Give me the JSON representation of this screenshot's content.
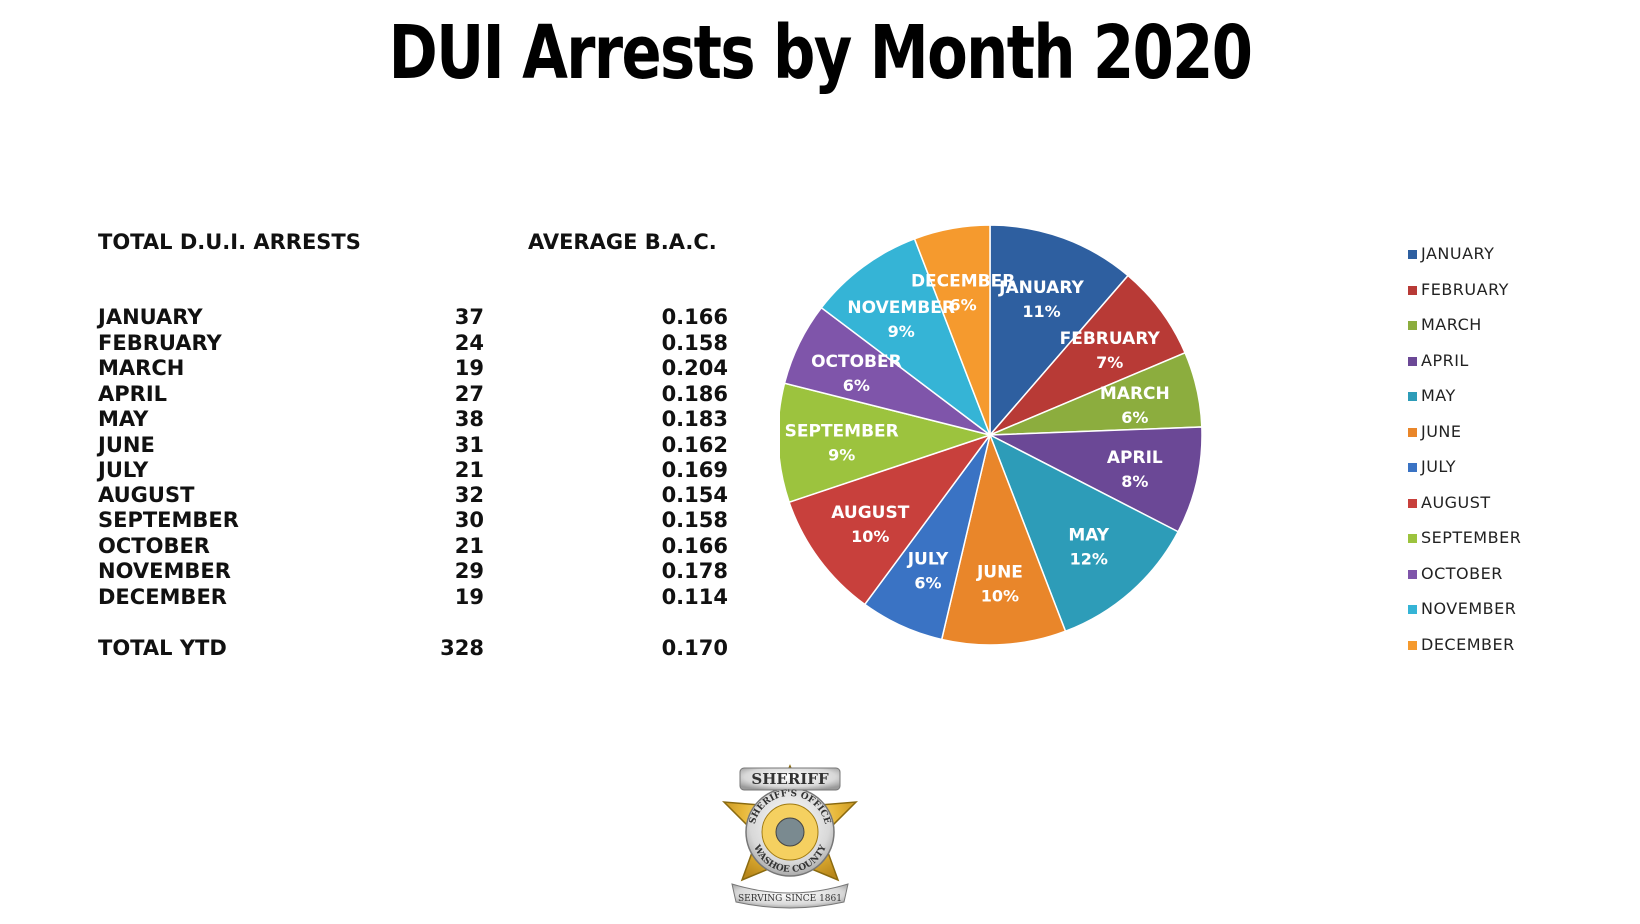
{
  "title": "DUI Arrests by Month 2020",
  "table": {
    "header_left": "TOTAL D.U.I. ARRESTS",
    "header_right": "AVERAGE B.A.C.",
    "rows": [
      {
        "month": "JANUARY",
        "count": "37",
        "bac": "0.166"
      },
      {
        "month": "FEBRUARY",
        "count": "24",
        "bac": "0.158"
      },
      {
        "month": "MARCH",
        "count": "19",
        "bac": "0.204"
      },
      {
        "month": "APRIL",
        "count": "27",
        "bac": "0.186"
      },
      {
        "month": "MAY",
        "count": "38",
        "bac": "0.183"
      },
      {
        "month": "JUNE",
        "count": "31",
        "bac": "0.162"
      },
      {
        "month": "JULY",
        "count": "21",
        "bac": "0.169"
      },
      {
        "month": "AUGUST",
        "count": "32",
        "bac": "0.154"
      },
      {
        "month": "SEPTEMBER",
        "count": "30",
        "bac": "0.158"
      },
      {
        "month": "OCTOBER",
        "count": "21",
        "bac": "0.166"
      },
      {
        "month": "NOVEMBER",
        "count": "29",
        "bac": "0.178"
      },
      {
        "month": "DECEMBER",
        "count": "19",
        "bac": "0.114"
      }
    ],
    "total": {
      "label": "TOTAL YTD",
      "count": "328",
      "bac": "0.170"
    }
  },
  "chart_data": {
    "type": "pie",
    "categories": [
      "JANUARY",
      "FEBRUARY",
      "MARCH",
      "APRIL",
      "MAY",
      "JUNE",
      "JULY",
      "AUGUST",
      "SEPTEMBER",
      "OCTOBER",
      "NOVEMBER",
      "DECEMBER"
    ],
    "values": [
      37,
      24,
      19,
      27,
      38,
      31,
      21,
      32,
      30,
      21,
      29,
      19
    ],
    "labels": [
      "11%",
      "7%",
      "6%",
      "8%",
      "12%",
      "10%",
      "6%",
      "10%",
      "9%",
      "6%",
      "9%",
      "6%"
    ],
    "colors": [
      "#2e5fa0",
      "#b83a36",
      "#8cad3e",
      "#6b4896",
      "#2d9cb8",
      "#e9862a",
      "#3a73c4",
      "#c8403c",
      "#9cc33e",
      "#7f55aa",
      "#35b4d6",
      "#f59a2e"
    ],
    "legend_position": "right"
  },
  "badge": {
    "top_text": "SHERIFF",
    "ring_top": "SHERIFF'S OFFICE",
    "ring_bottom": "WASHOE COUNTY",
    "banner": "SERVING SINCE 1861"
  }
}
